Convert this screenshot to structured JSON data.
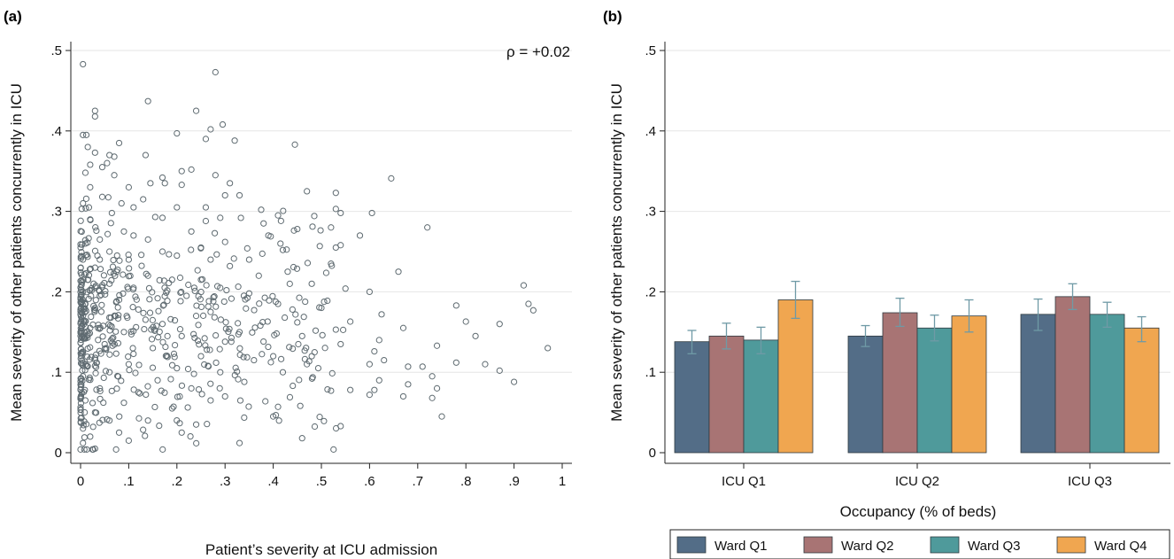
{
  "panel_a_label": "(a)",
  "panel_b_label": "(b)",
  "chart_data": [
    {
      "type": "scatter",
      "title": "",
      "xlabel": "Patient’s severity at ICU admission",
      "ylabel": "Mean severity of other patients concurrently in ICU",
      "xlim": [
        0,
        1
      ],
      "ylim": [
        0,
        0.5
      ],
      "xticks": [
        0,
        0.1,
        0.2,
        0.3,
        0.4,
        0.5,
        0.6,
        0.7,
        0.8,
        0.9,
        1
      ],
      "xtick_labels": [
        "0",
        ".1",
        ".2",
        ".3",
        ".4",
        ".5",
        ".6",
        ".7",
        ".8",
        ".9",
        "1"
      ],
      "yticks": [
        0,
        0.1,
        0.2,
        0.3,
        0.4,
        0.5
      ],
      "ytick_labels": [
        "0",
        ".1",
        ".2",
        ".3",
        ".4",
        ".5"
      ],
      "grid": true,
      "annotation": "ρ = +0.02",
      "marker_color": "#5f6b71",
      "points": [
        [
          0.005,
          0.483
        ],
        [
          0.28,
          0.473
        ],
        [
          0.14,
          0.437
        ],
        [
          0.24,
          0.425
        ],
        [
          0.03,
          0.425
        ],
        [
          0.03,
          0.418
        ],
        [
          0.295,
          0.408
        ],
        [
          0.27,
          0.402
        ],
        [
          0.005,
          0.395
        ],
        [
          0.012,
          0.395
        ],
        [
          0.2,
          0.397
        ],
        [
          0.26,
          0.39
        ],
        [
          0.32,
          0.388
        ],
        [
          0.08,
          0.385
        ],
        [
          0.445,
          0.383
        ],
        [
          0.015,
          0.38
        ],
        [
          0.03,
          0.373
        ],
        [
          0.06,
          0.37
        ],
        [
          0.07,
          0.368
        ],
        [
          0.135,
          0.37
        ],
        [
          0.02,
          0.358
        ],
        [
          0.045,
          0.355
        ],
        [
          0.055,
          0.36
        ],
        [
          0.23,
          0.352
        ],
        [
          0.21,
          0.35
        ],
        [
          0.28,
          0.345
        ],
        [
          0.645,
          0.341
        ],
        [
          0.01,
          0.348
        ],
        [
          0.07,
          0.345
        ],
        [
          0.17,
          0.342
        ],
        [
          0.31,
          0.335
        ],
        [
          0.175,
          0.335
        ],
        [
          0.21,
          0.333
        ],
        [
          0.145,
          0.335
        ],
        [
          0.02,
          0.33
        ],
        [
          0.1,
          0.33
        ],
        [
          0.47,
          0.325
        ],
        [
          0.53,
          0.323
        ],
        [
          0.3,
          0.32
        ],
        [
          0.33,
          0.32
        ],
        [
          0.045,
          0.318
        ],
        [
          0.13,
          0.315
        ],
        [
          0.085,
          0.31
        ],
        [
          0.005,
          0.31
        ],
        [
          0.11,
          0.305
        ],
        [
          0.2,
          0.305
        ],
        [
          0.26,
          0.305
        ],
        [
          0.53,
          0.303
        ],
        [
          0.375,
          0.302
        ],
        [
          0.41,
          0.295
        ],
        [
          0.605,
          0.298
        ],
        [
          0.54,
          0.298
        ],
        [
          0.065,
          0.298
        ],
        [
          0.155,
          0.293
        ],
        [
          0.26,
          0.288
        ],
        [
          0.29,
          0.292
        ],
        [
          0.02,
          0.29
        ],
        [
          0.38,
          0.285
        ],
        [
          0.72,
          0.28
        ],
        [
          0.52,
          0.28
        ],
        [
          0.23,
          0.275
        ],
        [
          0.45,
          0.278
        ],
        [
          0.09,
          0.275
        ],
        [
          0.11,
          0.27
        ],
        [
          0.14,
          0.265
        ],
        [
          0.39,
          0.27
        ],
        [
          0.58,
          0.27
        ],
        [
          0.04,
          0.265
        ],
        [
          0.01,
          0.26
        ],
        [
          0.3,
          0.262
        ],
        [
          0.415,
          0.26
        ],
        [
          0.42,
          0.252
        ],
        [
          0.53,
          0.255
        ],
        [
          0.54,
          0.258
        ],
        [
          0.25,
          0.255
        ],
        [
          0.06,
          0.25
        ],
        [
          0.17,
          0.25
        ],
        [
          0.035,
          0.245
        ],
        [
          0.005,
          0.24
        ],
        [
          0.2,
          0.245
        ],
        [
          0.27,
          0.24
        ],
        [
          0.35,
          0.24
        ],
        [
          0.1,
          0.24
        ],
        [
          0.52,
          0.235
        ],
        [
          0.31,
          0.232
        ],
        [
          0.03,
          0.23
        ],
        [
          0.075,
          0.225
        ],
        [
          0.66,
          0.225
        ],
        [
          0.14,
          0.22
        ],
        [
          0.43,
          0.225
        ],
        [
          0.37,
          0.22
        ],
        [
          0.25,
          0.215
        ],
        [
          0.015,
          0.215
        ],
        [
          0.19,
          0.215
        ],
        [
          0.06,
          0.21
        ],
        [
          0.92,
          0.208
        ],
        [
          0.48,
          0.21
        ],
        [
          0.11,
          0.205
        ],
        [
          0.55,
          0.204
        ],
        [
          0.29,
          0.205
        ],
        [
          0.6,
          0.2
        ],
        [
          0.005,
          0.2
        ],
        [
          0.04,
          0.195
        ],
        [
          0.35,
          0.198
        ],
        [
          0.22,
          0.195
        ],
        [
          0.16,
          0.192
        ],
        [
          0.08,
          0.19
        ],
        [
          0.41,
          0.185
        ],
        [
          0.78,
          0.183
        ],
        [
          0.93,
          0.185
        ],
        [
          0.94,
          0.177
        ],
        [
          0.44,
          0.178
        ],
        [
          0.5,
          0.18
        ],
        [
          0.03,
          0.18
        ],
        [
          0.12,
          0.178
        ],
        [
          0.27,
          0.175
        ],
        [
          0.625,
          0.172
        ],
        [
          0.24,
          0.17
        ],
        [
          0.005,
          0.17
        ],
        [
          0.06,
          0.168
        ],
        [
          0.8,
          0.163
        ],
        [
          0.87,
          0.16
        ],
        [
          0.56,
          0.163
        ],
        [
          0.45,
          0.162
        ],
        [
          0.17,
          0.16
        ],
        [
          0.67,
          0.155
        ],
        [
          0.53,
          0.153
        ],
        [
          0.02,
          0.155
        ],
        [
          0.33,
          0.15
        ],
        [
          0.09,
          0.15
        ],
        [
          0.82,
          0.145
        ],
        [
          0.46,
          0.145
        ],
        [
          0.21,
          0.145
        ],
        [
          0.01,
          0.142
        ],
        [
          0.62,
          0.14
        ],
        [
          0.3,
          0.138
        ],
        [
          0.54,
          0.135
        ],
        [
          0.74,
          0.133
        ],
        [
          0.05,
          0.135
        ],
        [
          0.15,
          0.13
        ],
        [
          0.97,
          0.13
        ],
        [
          0.61,
          0.126
        ],
        [
          0.4,
          0.12
        ],
        [
          0.48,
          0.12
        ],
        [
          0.005,
          0.125
        ],
        [
          0.25,
          0.12
        ],
        [
          0.36,
          0.115
        ],
        [
          0.63,
          0.115
        ],
        [
          0.78,
          0.112
        ],
        [
          0.84,
          0.11
        ],
        [
          0.71,
          0.107
        ],
        [
          0.68,
          0.107
        ],
        [
          0.6,
          0.11
        ],
        [
          0.47,
          0.11
        ],
        [
          0.1,
          0.11
        ],
        [
          0.03,
          0.108
        ],
        [
          0.2,
          0.105
        ],
        [
          0.87,
          0.102
        ],
        [
          0.42,
          0.1
        ],
        [
          0.29,
          0.1
        ],
        [
          0.06,
          0.1
        ],
        [
          0.73,
          0.095
        ],
        [
          0.9,
          0.088
        ],
        [
          0.62,
          0.09
        ],
        [
          0.005,
          0.095
        ],
        [
          0.16,
          0.09
        ],
        [
          0.34,
          0.088
        ],
        [
          0.68,
          0.085
        ],
        [
          0.74,
          0.08
        ],
        [
          0.56,
          0.078
        ],
        [
          0.61,
          0.078
        ],
        [
          0.52,
          0.077
        ],
        [
          0.23,
          0.08
        ],
        [
          0.04,
          0.08
        ],
        [
          0.12,
          0.075
        ],
        [
          0.6,
          0.072
        ],
        [
          0.67,
          0.07
        ],
        [
          0.73,
          0.068
        ],
        [
          0.3,
          0.07
        ],
        [
          0.01,
          0.065
        ],
        [
          0.27,
          0.065
        ],
        [
          0.09,
          0.062
        ],
        [
          0.41,
          0.057
        ],
        [
          0.19,
          0.055
        ],
        [
          0.03,
          0.05
        ],
        [
          0.4,
          0.045
        ],
        [
          0.75,
          0.045
        ],
        [
          0.14,
          0.04
        ],
        [
          0.06,
          0.04
        ],
        [
          0.24,
          0.035
        ],
        [
          0.54,
          0.033
        ],
        [
          0.005,
          0.03
        ],
        [
          0.08,
          0.025
        ],
        [
          0.21,
          0.025
        ],
        [
          0.46,
          0.018
        ],
        [
          0.1,
          0.015
        ],
        [
          0.33,
          0.012
        ],
        [
          0.005,
          0.012
        ],
        [
          0.03,
          0.005
        ],
        [
          0.02,
          0.02
        ]
      ]
    },
    {
      "type": "bar",
      "title": "",
      "xlabel": "Occupancy (% of beds)",
      "ylabel": "Mean severity of other patients concurrently in ICU",
      "ylim": [
        0,
        0.5
      ],
      "yticks": [
        0,
        0.1,
        0.2,
        0.3,
        0.4,
        0.5
      ],
      "ytick_labels": [
        "0",
        ".1",
        ".2",
        ".3",
        ".4",
        ".5"
      ],
      "grid": true,
      "legend_position": "bottom",
      "categories": [
        "ICU Q1",
        "ICU Q2",
        "ICU Q3"
      ],
      "error_bar_color": "#6f9aa6",
      "series": [
        {
          "name": "Ward Q1",
          "color": "#536d87",
          "values": [
            0.138,
            0.145,
            0.172
          ],
          "lower": [
            0.123,
            0.132,
            0.152
          ],
          "upper": [
            0.152,
            0.158,
            0.191
          ]
        },
        {
          "name": "Ward Q2",
          "color": "#a87474",
          "values": [
            0.145,
            0.174,
            0.194
          ],
          "lower": [
            0.129,
            0.157,
            0.178
          ],
          "upper": [
            0.161,
            0.192,
            0.21
          ]
        },
        {
          "name": "Ward Q3",
          "color": "#4f9a9b",
          "values": [
            0.14,
            0.155,
            0.172
          ],
          "lower": [
            0.123,
            0.139,
            0.156
          ],
          "upper": [
            0.156,
            0.171,
            0.187
          ]
        },
        {
          "name": "Ward Q4",
          "color": "#f0a650",
          "values": [
            0.19,
            0.17,
            0.155
          ],
          "lower": [
            0.167,
            0.15,
            0.138
          ],
          "upper": [
            0.213,
            0.19,
            0.169
          ]
        }
      ]
    }
  ]
}
